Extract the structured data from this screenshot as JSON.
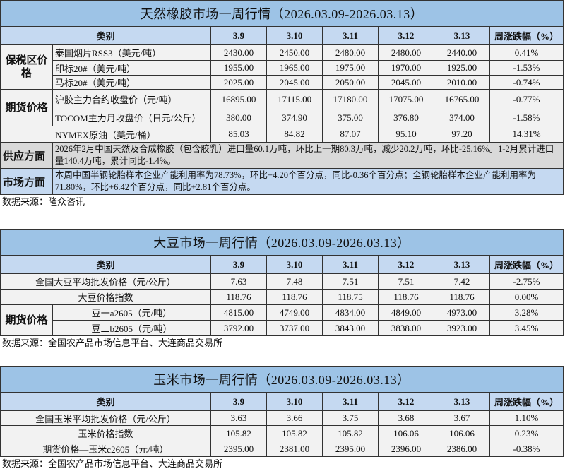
{
  "dates": [
    "3.9",
    "3.10",
    "3.11",
    "3.12",
    "3.13"
  ],
  "category_label": "类别",
  "change_label": "周涨跌幅（%）",
  "colors": {
    "title_bg": "#9dc3e6",
    "header_bg": "#c5d9f1",
    "cell_bg": "#f2f2f2",
    "supply_bg": "#d9d9d9",
    "market_bg": "#c5d9f1"
  },
  "rubber": {
    "title": "天然橡胶市场一周行情（2026.03.09-2026.03.13）",
    "rows": [
      {
        "group": "保税区价格",
        "span": 3,
        "label": "泰国烟片RSS3（美元/吨）",
        "values": [
          "2430.00",
          "2450.00",
          "2480.00",
          "2480.00",
          "2440.00"
        ],
        "change": "0.41%"
      },
      {
        "label": "印标20#（美元/吨）",
        "values": [
          "1955.00",
          "1965.00",
          "1975.00",
          "1970.00",
          "1925.00"
        ],
        "change": "-1.53%"
      },
      {
        "label": "马标20#（美元/吨）",
        "values": [
          "2025.00",
          "2045.00",
          "2050.00",
          "2045.00",
          "2010.00"
        ],
        "change": "-0.74%"
      },
      {
        "group": "期货价格",
        "span": 2,
        "label": "沪胶主力合约收盘价（元/吨）",
        "values": [
          "16895.00",
          "17115.00",
          "17180.00",
          "17075.00",
          "16765.00"
        ],
        "change": "-0.77%"
      },
      {
        "label": "TOCOM主力月收盘价（日元/公斤）",
        "values": [
          "380.00",
          "374.90",
          "375.00",
          "376.80",
          "374.00"
        ],
        "change": "-1.58%"
      },
      {
        "full": true,
        "label": "NYMEX原油（美元/桶）",
        "values": [
          "85.03",
          "84.82",
          "87.07",
          "95.10",
          "97.20"
        ],
        "change": "14.31%"
      }
    ],
    "supply": {
      "label": "供应方面",
      "text": "2026年2月中国天然及合成橡胶（包含胶乳）进口量60.1万吨，环比上一期80.3万吨，减少20.2万吨，环比-25.16%。1-2月累计进口量140.4万吨，累计同比-1.4%。"
    },
    "market": {
      "label": "市场方面",
      "text": "本周中国半钢轮胎样本企业产能利用率为78.73%，环比+4.20个百分点，同比-0.36个百分点；全钢轮胎样本企业产能利用率为71.80%，环比+6.42个百分点，同比+2.81个百分点。"
    },
    "source": "数据来源：隆众咨讯"
  },
  "soybean": {
    "title": "大豆市场一周行情（2026.03.09-2026.03.13）",
    "rows": [
      {
        "full": true,
        "center": true,
        "label": "全国大豆平均批发价格（元/公斤）",
        "values": [
          "7.63",
          "7.48",
          "7.51",
          "7.51",
          "7.42"
        ],
        "change": "-2.75%"
      },
      {
        "full": true,
        "center": true,
        "label": "大豆价格指数",
        "values": [
          "118.76",
          "118.76",
          "118.75",
          "118.76",
          "118.76"
        ],
        "change": "0.00%"
      },
      {
        "group": "期货价格",
        "span": 2,
        "center": true,
        "label": "豆一a2605（元/吨）",
        "values": [
          "4815.00",
          "4749.00",
          "4834.00",
          "4849.00",
          "4973.00"
        ],
        "change": "3.28%"
      },
      {
        "center": true,
        "label": "豆二b2605（元/吨）",
        "values": [
          "3792.00",
          "3737.00",
          "3843.00",
          "3838.00",
          "3923.00"
        ],
        "change": "3.45%"
      }
    ],
    "source": "数据来源：全国农产品市场信息平台、大连商品交易所"
  },
  "corn": {
    "title": "玉米市场一周行情（2026.03.09-2026.03.13）",
    "rows": [
      {
        "full": true,
        "center": true,
        "label": "全国玉米平均批发价格（元/公斤）",
        "values": [
          "3.63",
          "3.66",
          "3.75",
          "3.68",
          "3.67"
        ],
        "change": "1.10%"
      },
      {
        "full": true,
        "center": true,
        "label": "玉米价格指数",
        "values": [
          "105.82",
          "105.82",
          "105.82",
          "106.06",
          "106.06"
        ],
        "change": "0.23%"
      },
      {
        "full": true,
        "center": true,
        "label": "期货价格—玉米c2605（元/吨）",
        "values": [
          "2395.00",
          "2381.00",
          "2395.00",
          "2396.00",
          "2386.00"
        ],
        "change": "-0.38%"
      }
    ],
    "source": "数据来源：全国农产品市场信息平台、大连商品交易所"
  }
}
